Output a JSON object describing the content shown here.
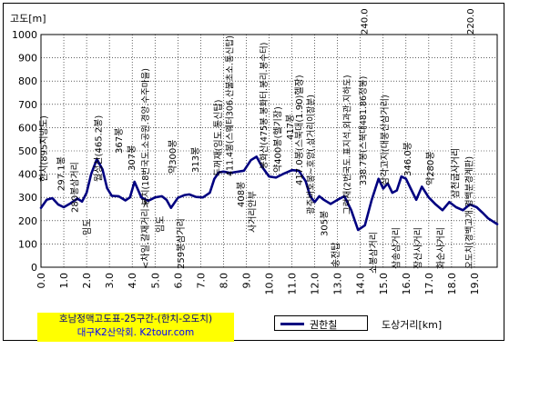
{
  "chart_data": {
    "type": "line",
    "ylabel": "고도[m]",
    "xlabel": "도상거리[km]",
    "xlim": [
      0,
      20
    ],
    "ylim": [
      0,
      1000
    ],
    "yticks": [
      "0",
      "100",
      "200",
      "300",
      "400",
      "500",
      "600",
      "700",
      "800",
      "900",
      "1000"
    ],
    "xticks": [
      "0.0",
      "1.0",
      "2.0",
      "3.0",
      "4.0",
      "5.0",
      "6.0",
      "7.0",
      "8.0",
      "9.0",
      "10.0",
      "11.0",
      "12.0",
      "13.0",
      "14.0",
      "15.0",
      "16.0",
      "17.0",
      "18.0",
      "19.0"
    ],
    "grid": true,
    "legend_position": "bottom",
    "series": [
      {
        "name": "권한칠",
        "color": "#000080",
        "x": [
          0.0,
          0.25,
          0.5,
          0.75,
          1.0,
          1.3,
          1.6,
          1.8,
          2.0,
          2.2,
          2.45,
          2.7,
          2.9,
          3.1,
          3.4,
          3.7,
          3.9,
          4.1,
          4.4,
          4.7,
          5.0,
          5.3,
          5.5,
          5.7,
          6.0,
          6.3,
          6.5,
          6.8,
          7.1,
          7.4,
          7.6,
          7.8,
          8.0,
          8.3,
          8.6,
          8.9,
          9.2,
          9.45,
          9.7,
          10.0,
          10.3,
          10.6,
          11.0,
          11.3,
          11.6,
          11.8,
          12.0,
          12.2,
          12.4,
          12.7,
          13.0,
          13.3,
          13.6,
          13.9,
          14.2,
          14.5,
          14.8,
          15.0,
          15.2,
          15.4,
          15.6,
          15.8,
          16.0,
          16.2,
          16.45,
          16.7,
          17.0,
          17.3,
          17.6,
          17.9,
          18.2,
          18.5,
          18.8,
          19.1,
          19.4,
          19.6,
          20.0
        ],
        "values": [
          255,
          290,
          297,
          270,
          258,
          275,
          295,
          282,
          320,
          400,
          465,
          420,
          340,
          307,
          305,
          287,
          300,
          367,
          300,
          285,
          300,
          305,
          290,
          255,
          298,
          310,
          313,
          302,
          300,
          320,
          380,
          408,
          411,
          405,
          410,
          415,
          460,
          475,
          430,
          390,
          385,
          400,
          417,
          415,
          370,
          305,
          280,
          305,
          290,
          272,
          290,
          305,
          245,
          160,
          180,
          290,
          380,
          338,
          360,
          320,
          330,
          390,
          380,
          340,
          290,
          346,
          300,
          270,
          245,
          280,
          258,
          245,
          270,
          258,
          230,
          210,
          185
        ]
      }
    ],
    "annotations": [
      "한치(895지방도)",
      "297.1봉",
      "280봉삼거리",
      "임도",
      "월성산(465.2봉)",
      "367봉",
      "307봉",
      "봉치(18번국도.소공원.경양.수주마을)",
      "<차일.갈재거리>",
      "임도",
      "약300봉",
      "259봉삼거리",
      "313봉",
      "두꺼재(임도.통신탑)",
      "411.4봉(스웨터306.산불초소.통신탑)",
      "408봉",
      "사거리안부",
      "봉화산(475봉.봉화터.봉리.봉수터)",
      "약400봉(헬기장)",
      "417봉",
      "417.0봉(스북대(1.90)헬장)",
      "광주비호봉~호양(.삼거리이장분)",
      "305봉",
      "송전탑",
      "그럭재(2번국도.표지석.외과관.지하도)",
      "338.7봉(스북대481.86정봉)",
      "소봉삼거리",
      "삼각고지(대봉산삼거리)",
      "삼송삼거리",
      "346.0봉",
      "장산사거리",
      "약280봉",
      "화순사거리",
      "삼천굽사거리",
      "오도치(경백고개.경백분경계판)",
      "220.0",
      "240.0"
    ]
  },
  "credit": {
    "line1": "호남정맥고도표-25구간-(한치-오도치)",
    "line2": "대구K2산악회. K2tour.com"
  }
}
